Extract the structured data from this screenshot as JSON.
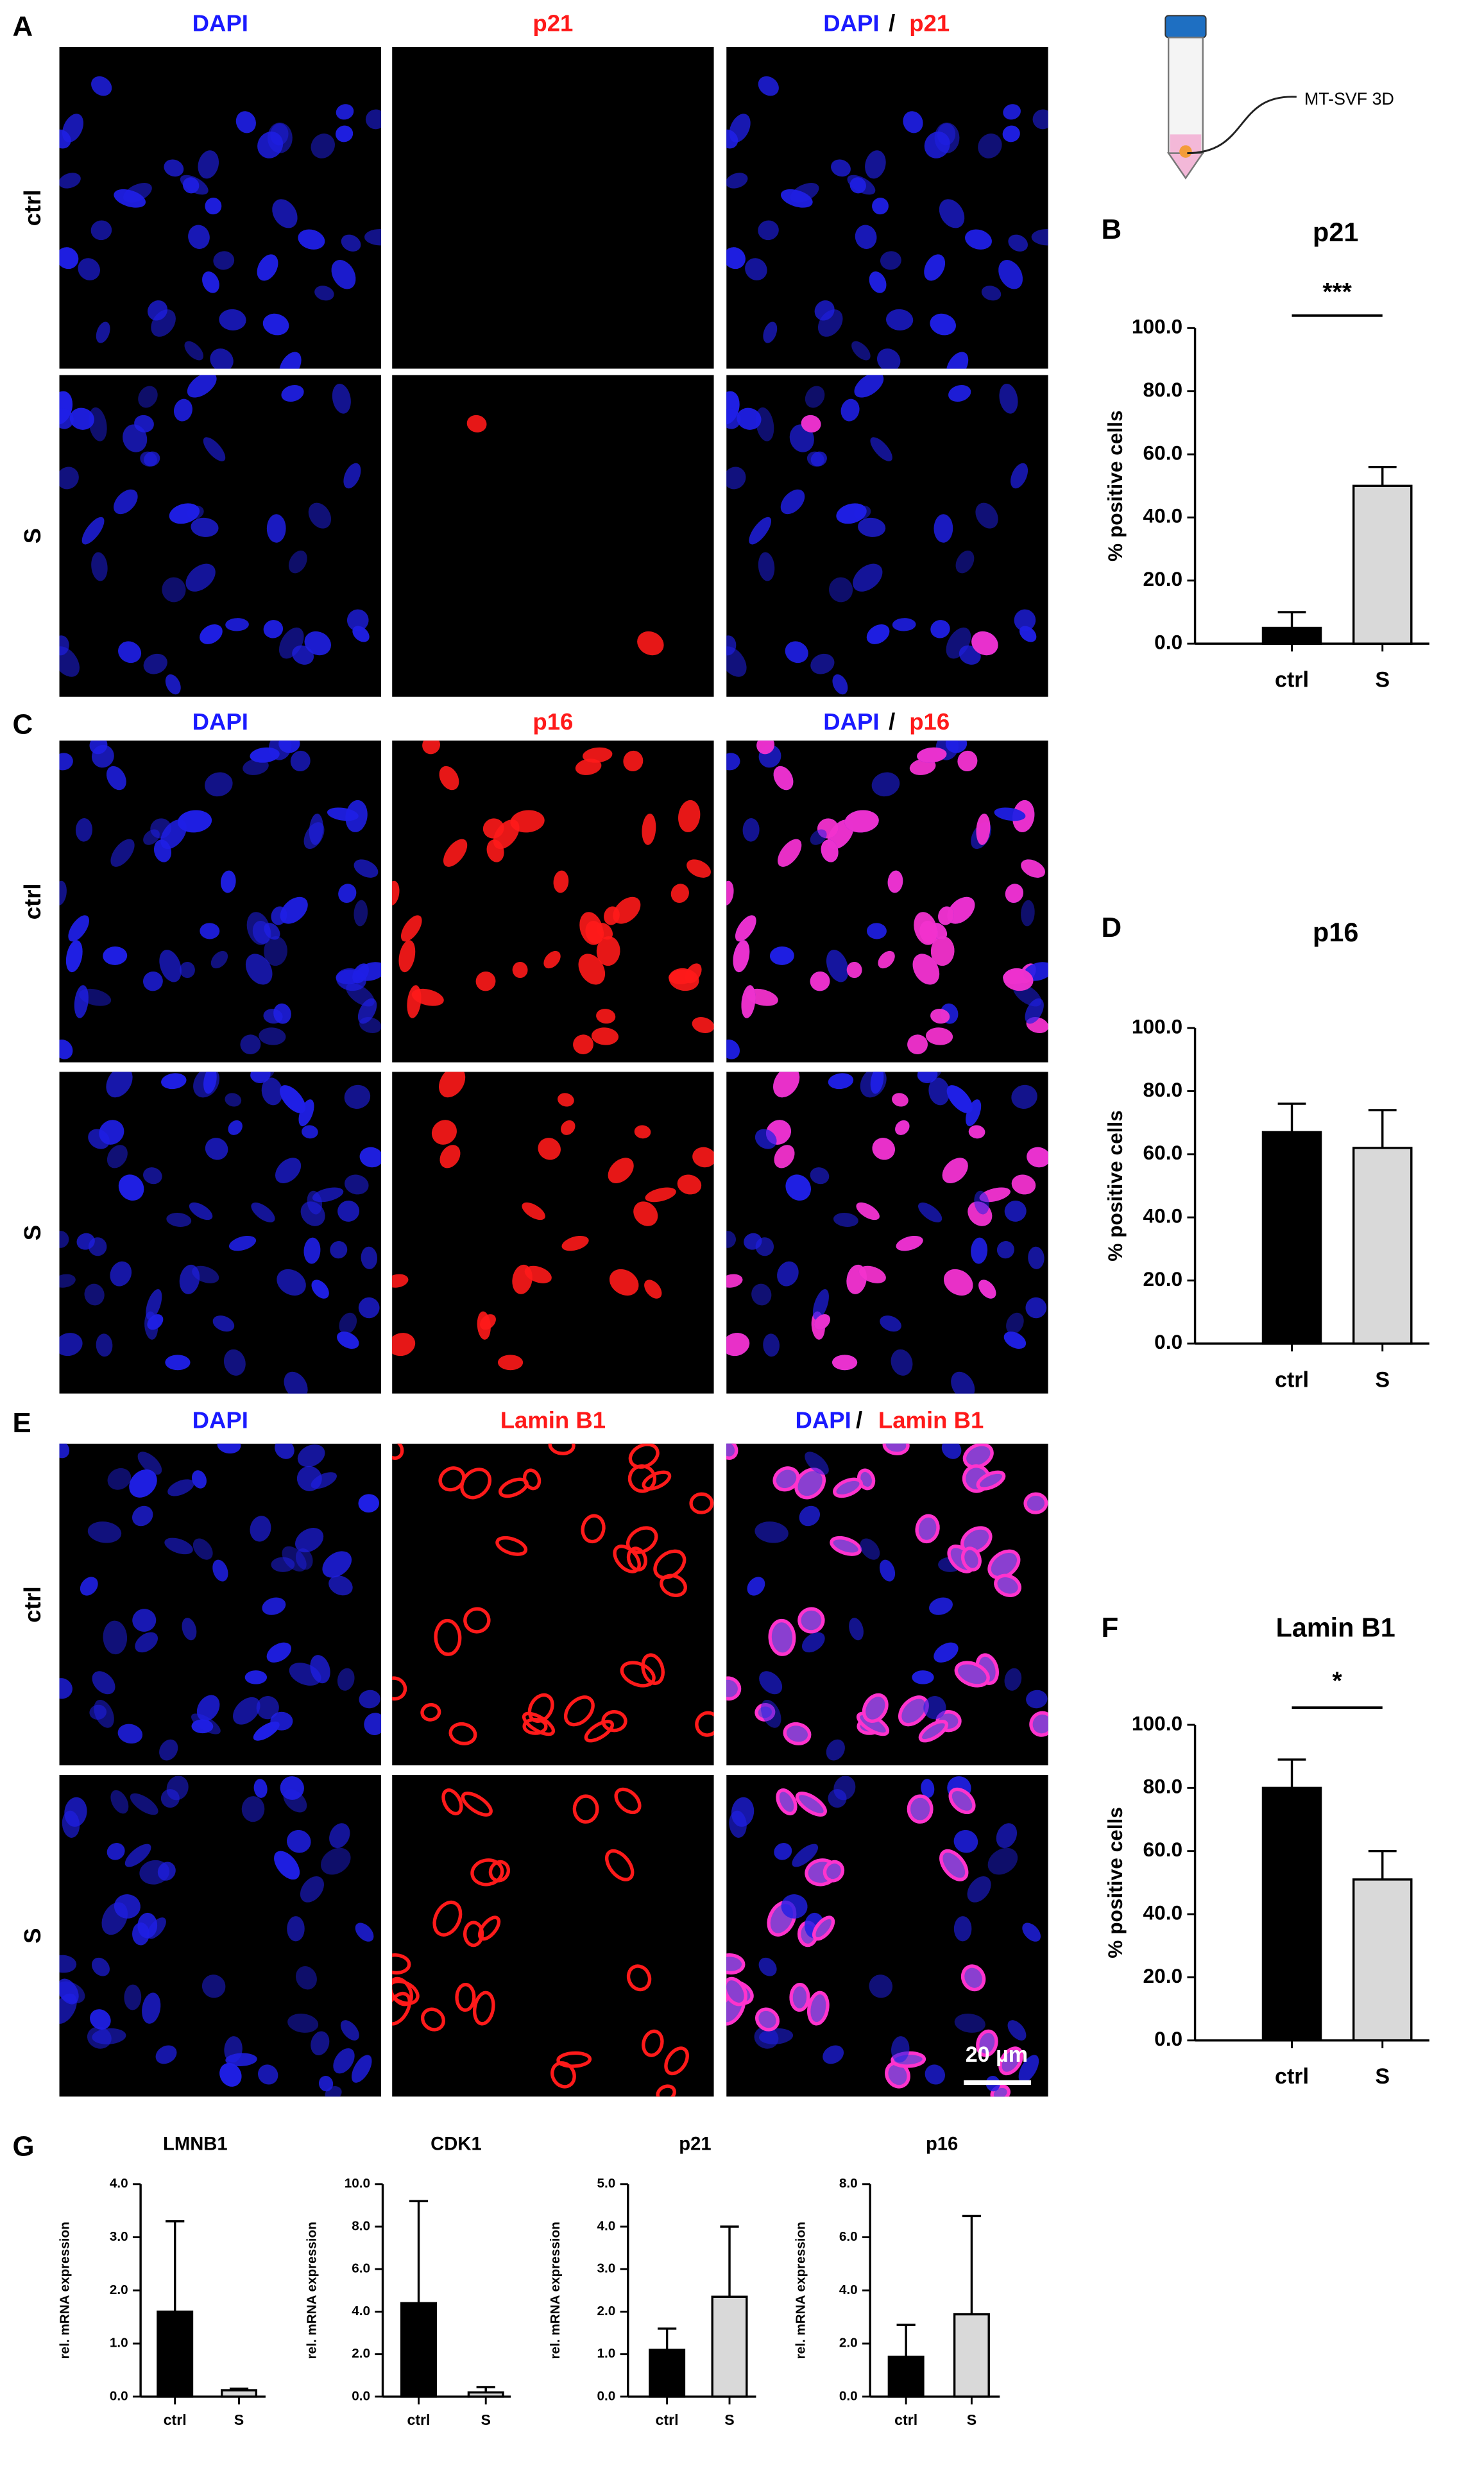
{
  "panels": [
    {
      "letter": "A",
      "headers": [
        "DAPI",
        "p21",
        "DAPI",
        "/",
        "p21"
      ],
      "rows": [
        "ctrl",
        "S"
      ]
    },
    {
      "letter": "C",
      "headers": [
        "DAPI",
        "p16",
        "DAPI",
        "/",
        "p16"
      ],
      "rows": [
        "ctrl",
        "S"
      ]
    },
    {
      "letter": "E",
      "headers": [
        "DAPI",
        "Lamin B1",
        "DAPI",
        "/",
        "Lamin B1"
      ],
      "rows": [
        "ctrl",
        "S"
      ],
      "scale_bar": "20 µm"
    }
  ],
  "inset_label": "MT-SVF 3D",
  "chart_data": [
    {
      "type": "bar",
      "panel": "B",
      "title": "p21",
      "ylabel": "% positive cells",
      "categories": [
        "ctrl",
        "S"
      ],
      "values": [
        5,
        50
      ],
      "errors": [
        5,
        6
      ],
      "colors": [
        "#000000",
        "#d9d9d9"
      ],
      "ylim": [
        0,
        100
      ],
      "yticks": [
        {
          "value": 0,
          "label": "0.0"
        },
        {
          "value": 20,
          "label": "20.0"
        },
        {
          "value": 40,
          "label": "40.0"
        },
        {
          "value": 60,
          "label": "60.0"
        },
        {
          "value": 80,
          "label": "80.0"
        },
        {
          "value": 100,
          "label": "100.0"
        }
      ],
      "annotation": "***"
    },
    {
      "type": "bar",
      "panel": "D",
      "title": "p16",
      "ylabel": "% positive cells",
      "categories": [
        "ctrl",
        "S"
      ],
      "values": [
        67,
        62
      ],
      "errors": [
        9,
        12
      ],
      "colors": [
        "#000000",
        "#d9d9d9"
      ],
      "ylim": [
        0,
        100
      ],
      "yticks": [
        {
          "value": 0,
          "label": "0.0"
        },
        {
          "value": 20,
          "label": "20.0"
        },
        {
          "value": 40,
          "label": "40.0"
        },
        {
          "value": 60,
          "label": "60.0"
        },
        {
          "value": 80,
          "label": "80.0"
        },
        {
          "value": 100,
          "label": "100.0"
        }
      ]
    },
    {
      "type": "bar",
      "panel": "F",
      "title": "Lamin B1",
      "ylabel": "% positive cells",
      "categories": [
        "ctrl",
        "S"
      ],
      "values": [
        80,
        51
      ],
      "errors": [
        9,
        9
      ],
      "colors": [
        "#000000",
        "#d9d9d9"
      ],
      "ylim": [
        0,
        100
      ],
      "yticks": [
        {
          "value": 0,
          "label": "0.0"
        },
        {
          "value": 20,
          "label": "20.0"
        },
        {
          "value": 40,
          "label": "40.0"
        },
        {
          "value": 60,
          "label": "60.0"
        },
        {
          "value": 80,
          "label": "80.0"
        },
        {
          "value": 100,
          "label": "100.0"
        }
      ],
      "annotation": "*"
    },
    {
      "type": "bar",
      "panel": "G",
      "title": "LMNB1",
      "ylabel": "rel. mRNA expression",
      "categories": [
        "ctrl",
        "S"
      ],
      "values": [
        1.6,
        0.12
      ],
      "errors": [
        1.7,
        0.03
      ],
      "colors": [
        "#000000",
        "#d9d9d9"
      ],
      "ylim": [
        0,
        4
      ],
      "yticks": [
        {
          "value": 0,
          "label": "0.0"
        },
        {
          "value": 1,
          "label": "1.0"
        },
        {
          "value": 2,
          "label": "2.0"
        },
        {
          "value": 3,
          "label": "3.0"
        },
        {
          "value": 4,
          "label": "4.0"
        }
      ]
    },
    {
      "type": "bar",
      "title": "CDK1",
      "ylabel": "rel. mRNA expression",
      "categories": [
        "ctrl",
        "S"
      ],
      "values": [
        4.4,
        0.2
      ],
      "errors": [
        4.8,
        0.25
      ],
      "colors": [
        "#000000",
        "#d9d9d9"
      ],
      "ylim": [
        0,
        10
      ],
      "yticks": [
        {
          "value": 0,
          "label": "0.0"
        },
        {
          "value": 2,
          "label": "2.0"
        },
        {
          "value": 4,
          "label": "4.0"
        },
        {
          "value": 6,
          "label": "6.0"
        },
        {
          "value": 8,
          "label": "8.0"
        },
        {
          "value": 10,
          "label": "10.0"
        }
      ]
    },
    {
      "type": "bar",
      "title": "p21",
      "ylabel": "rel. mRNA expression",
      "categories": [
        "ctrl",
        "S"
      ],
      "values": [
        1.1,
        2.35
      ],
      "errors": [
        0.5,
        1.65
      ],
      "colors": [
        "#000000",
        "#d9d9d9"
      ],
      "ylim": [
        0,
        5
      ],
      "yticks": [
        {
          "value": 0,
          "label": "0.0"
        },
        {
          "value": 1,
          "label": "1.0"
        },
        {
          "value": 2,
          "label": "2.0"
        },
        {
          "value": 3,
          "label": "3.0"
        },
        {
          "value": 4,
          "label": "4.0"
        },
        {
          "value": 5,
          "label": "5.0"
        }
      ]
    },
    {
      "type": "bar",
      "title": "p16",
      "ylabel": "rel. mRNA expression",
      "categories": [
        "ctrl",
        "S"
      ],
      "values": [
        1.5,
        3.1
      ],
      "errors": [
        1.2,
        3.7
      ],
      "colors": [
        "#000000",
        "#d9d9d9"
      ],
      "ylim": [
        0,
        8
      ],
      "yticks": [
        {
          "value": 0,
          "label": "0.0"
        },
        {
          "value": 2,
          "label": "2.0"
        },
        {
          "value": 4,
          "label": "4.0"
        },
        {
          "value": 6,
          "label": "6.0"
        },
        {
          "value": 8,
          "label": "8.0"
        }
      ]
    }
  ]
}
